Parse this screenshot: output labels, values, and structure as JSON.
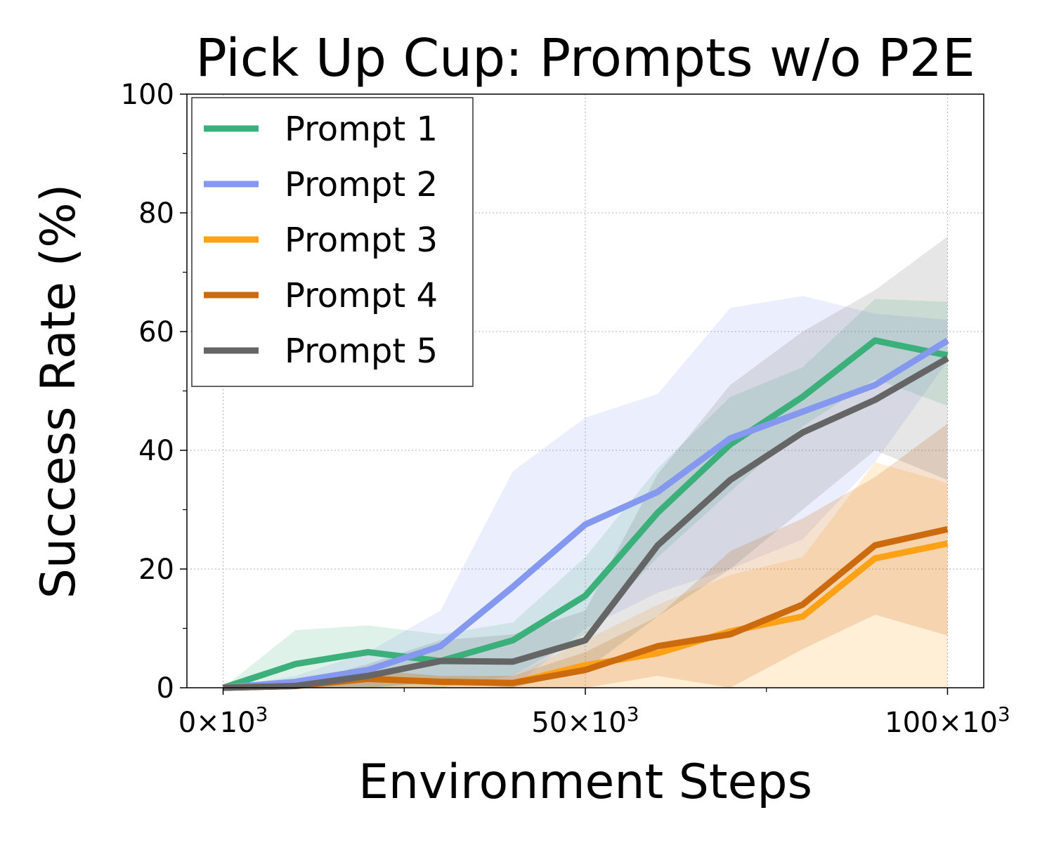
{
  "chart_data": {
    "type": "line",
    "title": "Pick Up Cup: Prompts w/o P2E",
    "xlabel": "Environment Steps",
    "ylabel": "Success Rate (%)",
    "xlim": [
      -5000,
      105000
    ],
    "ylim": [
      0,
      100
    ],
    "xticks": [
      0,
      50000,
      100000
    ],
    "xtick_labels": [
      "0×10",
      "50×10",
      "100×10"
    ],
    "xtick_exponent": "3",
    "xticks_minor": [
      25000,
      75000
    ],
    "yticks": [
      0,
      20,
      40,
      60,
      80,
      100
    ],
    "ytick_labels": [
      "0",
      "20",
      "40",
      "60",
      "80",
      "100"
    ],
    "yticks_minor": [
      10,
      30,
      50,
      70,
      90
    ],
    "grid": true,
    "legend_position": "top-left",
    "x": [
      0,
      10000,
      20000,
      30000,
      40000,
      50000,
      60000,
      70000,
      80000,
      90000,
      100000
    ],
    "series": [
      {
        "name": "Prompt 1",
        "color": "#3bb07a",
        "values": [
          0,
          4,
          6,
          4.5,
          8,
          15.5,
          29.5,
          41,
          49,
          58.5,
          56
        ],
        "lower": [
          0,
          0,
          0,
          0,
          2,
          9,
          22,
          33,
          44,
          52,
          47.5
        ],
        "upper": [
          0,
          9.7,
          10.5,
          9,
          11,
          22,
          37,
          49,
          54,
          65.5,
          65
        ]
      },
      {
        "name": "Prompt 2",
        "color": "#8398ee",
        "values": [
          0,
          1,
          3,
          7,
          17,
          27.5,
          33,
          42,
          46.5,
          51,
          58.5
        ],
        "lower": [
          0,
          0,
          0,
          1,
          0,
          10,
          16,
          20,
          25,
          38,
          55
        ],
        "upper": [
          0,
          2,
          6,
          13,
          36.5,
          45.5,
          49.5,
          64,
          66,
          63,
          62
        ]
      },
      {
        "name": "Prompt 3",
        "color": "#ffa114",
        "values": [
          0,
          0.3,
          1.5,
          1,
          0.8,
          3.8,
          5.8,
          9.5,
          12,
          21.8,
          24.3
        ],
        "lower": [
          0,
          0,
          0,
          0,
          0,
          0,
          0,
          0,
          0,
          0,
          0
        ],
        "upper": [
          0,
          0.6,
          3,
          2,
          2,
          8,
          14,
          19,
          22,
          38,
          34.5
        ]
      },
      {
        "name": "Prompt 4",
        "color": "#cc6a0e",
        "values": [
          0,
          0.3,
          1.5,
          1,
          0.8,
          3,
          7,
          9,
          14,
          24,
          26.7
        ],
        "lower": [
          0,
          0,
          0,
          0,
          0,
          0,
          2,
          0,
          6.5,
          12.3,
          8.8
        ],
        "upper": [
          0,
          0.6,
          3,
          2,
          2,
          6,
          12,
          23,
          28.5,
          35.5,
          44.5
        ]
      },
      {
        "name": "Prompt 5",
        "color": "#656565",
        "values": [
          0,
          0.3,
          2,
          4.5,
          4.4,
          8,
          24,
          35,
          43,
          48.5,
          55.5
        ],
        "lower": [
          0,
          0,
          0,
          1,
          0,
          3,
          12,
          20,
          30,
          40,
          35
        ],
        "upper": [
          0,
          0.6,
          4,
          8,
          9,
          13,
          36,
          51,
          60,
          67,
          76
        ]
      }
    ]
  }
}
